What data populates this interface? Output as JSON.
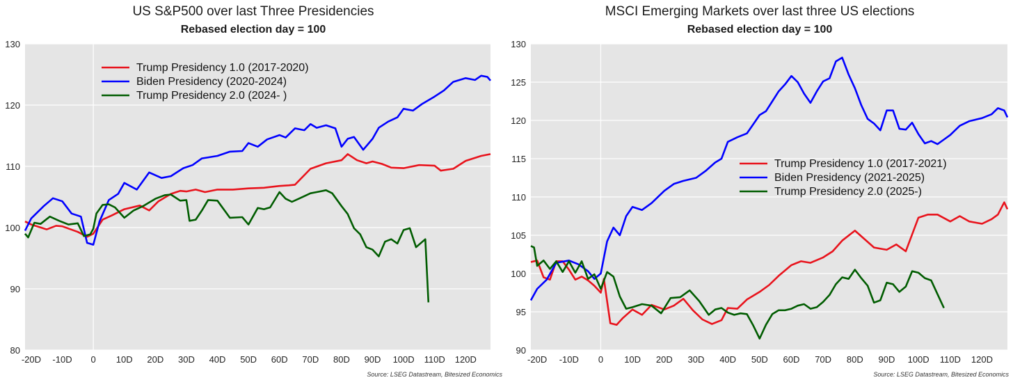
{
  "chart_data": [
    {
      "type": "line",
      "title": "US S&P500 over last Three Presidencies",
      "subtitle": "Rebased election day = 100",
      "xlabel": "",
      "ylabel": "",
      "xlim": [
        -22,
        128
      ],
      "ylim": [
        80,
        130
      ],
      "x_ticks": [
        -20,
        -10,
        0,
        10,
        20,
        30,
        40,
        50,
        60,
        70,
        80,
        90,
        100,
        110,
        120
      ],
      "x_tick_labels": [
        "-20D",
        "-10D",
        "0",
        "10D",
        "20D",
        "30D",
        "40D",
        "50D",
        "60D",
        "70D",
        "80D",
        "90D",
        "100D",
        "110D",
        "120D"
      ],
      "y_ticks": [
        80,
        90,
        100,
        110,
        120,
        130
      ],
      "y_tick_labels": [
        "80",
        "90",
        "100",
        "110",
        "120",
        "130"
      ],
      "grid": "horizontal",
      "legend": "top-center",
      "source": "Source: LSEG Datastream, Bitesized Economics",
      "series": [
        {
          "name": "Trump Presidency 1.0 (2017-2020)",
          "color": "#e8131c",
          "x": [
            -22,
            -20,
            -15,
            -12,
            -10,
            -5,
            -2,
            0,
            3,
            6,
            10,
            15,
            18,
            21,
            25,
            28,
            30,
            33,
            36,
            40,
            45,
            50,
            55,
            60,
            63,
            65,
            70,
            75,
            80,
            82,
            85,
            88,
            90,
            93,
            96,
            100,
            105,
            110,
            112,
            116,
            120,
            125,
            128
          ],
          "y": [
            101,
            100.5,
            99.7,
            100.3,
            100.2,
            99.3,
            98.5,
            99,
            101.3,
            102,
            103,
            103.6,
            102.8,
            104.3,
            105.5,
            106,
            105.9,
            106.2,
            105.8,
            106.2,
            106.2,
            106.4,
            106.5,
            106.8,
            106.9,
            107,
            109.6,
            110.5,
            111,
            112,
            111,
            110.5,
            110.8,
            110.4,
            109.8,
            109.7,
            110.2,
            110.1,
            109.3,
            109.6,
            110.9,
            111.7,
            112
          ]
        },
        {
          "name": "Biden Presidency (2020-2024)",
          "color": "#0000ff",
          "x": [
            -22,
            -20,
            -16,
            -13,
            -10,
            -7,
            -4,
            -2,
            0,
            2,
            5,
            8,
            10,
            14,
            18,
            22,
            25,
            29,
            32,
            35,
            40,
            44,
            48,
            50,
            53,
            56,
            60,
            62,
            65,
            68,
            70,
            72,
            75,
            78,
            80,
            82,
            84,
            87,
            90,
            92,
            95,
            98,
            100,
            103,
            106,
            110,
            113,
            116,
            120,
            123,
            125,
            127,
            128
          ],
          "y": [
            99.5,
            101.5,
            103.5,
            104.8,
            104.3,
            102.3,
            101.8,
            97.5,
            97.2,
            101,
            104.5,
            105.5,
            107.3,
            106.2,
            109,
            108.1,
            108.4,
            109.7,
            110.2,
            111.3,
            111.7,
            112.4,
            112.5,
            113.8,
            113.2,
            114.4,
            115.1,
            114.7,
            116.2,
            115.9,
            116.9,
            116.3,
            116.7,
            116.2,
            113.2,
            114.5,
            114.8,
            112.7,
            114.5,
            116.3,
            117.3,
            118,
            119.4,
            119.1,
            120.2,
            121.4,
            122.4,
            123.8,
            124.4,
            124.1,
            124.8,
            124.6,
            124
          ]
        },
        {
          "name": "Trump Presidency 2.0 (2024- )",
          "color": "#005c00",
          "x": [
            -22,
            -21,
            -19,
            -17,
            -14,
            -11,
            -8,
            -5,
            -3,
            -1,
            0,
            1,
            3,
            5,
            7,
            10,
            13,
            16,
            20,
            23,
            25,
            28,
            30,
            31,
            33,
            35,
            37,
            40,
            44,
            48,
            50,
            53,
            55,
            57,
            60,
            62,
            64,
            67,
            70,
            72,
            75,
            77,
            80,
            82,
            84,
            86,
            88,
            90,
            92,
            94,
            96,
            98,
            100,
            102,
            104,
            107,
            108
          ],
          "y": [
            99,
            98.4,
            100.8,
            100.6,
            101.8,
            101.1,
            100.5,
            100.7,
            98.6,
            98.9,
            99.8,
            102.3,
            103.7,
            103.8,
            103.3,
            101.6,
            102.8,
            103.5,
            104.7,
            105.3,
            105.4,
            104.4,
            104.5,
            101.1,
            101.3,
            102.8,
            104.5,
            104.4,
            101.6,
            101.7,
            100.5,
            103.2,
            103,
            103.3,
            105.8,
            104.7,
            104.2,
            104.9,
            105.6,
            105.8,
            106.1,
            105.6,
            103.5,
            102.2,
            99.9,
            98.9,
            96.8,
            96.4,
            95.3,
            97.7,
            98.1,
            97.4,
            99.6,
            99.9,
            96.8,
            98.1,
            87.8
          ]
        }
      ]
    },
    {
      "type": "line",
      "title": "MSCI Emerging Markets over last three US elections",
      "subtitle": "Rebased election day = 100",
      "xlabel": "",
      "ylabel": "",
      "xlim": [
        -22,
        128
      ],
      "ylim": [
        90,
        130
      ],
      "x_ticks": [
        -20,
        -10,
        0,
        10,
        20,
        30,
        40,
        50,
        60,
        70,
        80,
        90,
        100,
        110,
        120
      ],
      "x_tick_labels": [
        "-20D",
        "-10D",
        "0",
        "10D",
        "20D",
        "30D",
        "40D",
        "50D",
        "60D",
        "70D",
        "80D",
        "90D",
        "100D",
        "110D",
        "120D"
      ],
      "y_ticks": [
        90,
        95,
        100,
        105,
        110,
        115,
        120,
        125,
        130
      ],
      "y_tick_labels": [
        "90",
        "95",
        "100",
        "105",
        "110",
        "115",
        "120",
        "125",
        "130"
      ],
      "grid": "horizontal",
      "legend": "center-right",
      "source": "Source: LSEG Datastream, Bitesized Economics",
      "series": [
        {
          "name": "Trump Presidency 1.0 (2017-2021)",
          "color": "#e8131c",
          "x": [
            -22,
            -20,
            -18,
            -16,
            -14,
            -12,
            -10,
            -8,
            -6,
            -4,
            -2,
            0,
            1,
            3,
            5,
            7,
            10,
            13,
            16,
            20,
            23,
            26,
            29,
            32,
            35,
            38,
            40,
            43,
            46,
            50,
            53,
            56,
            60,
            63,
            66,
            70,
            73,
            76,
            80,
            83,
            86,
            90,
            93,
            96,
            100,
            103,
            106,
            110,
            113,
            116,
            120,
            123,
            125,
            127,
            128
          ],
          "y": [
            101.5,
            101.7,
            99.5,
            99.2,
            101.6,
            101.6,
            100.5,
            99.2,
            99.6,
            99.1,
            98.4,
            97.5,
            99.3,
            93.5,
            93.3,
            94.2,
            95.3,
            94.6,
            95.9,
            95.3,
            95.8,
            96.7,
            95.2,
            94,
            93.4,
            93.9,
            95.5,
            95.4,
            96.6,
            97.6,
            98.5,
            99.7,
            101.1,
            101.6,
            101.4,
            102.1,
            102.9,
            104.3,
            105.6,
            104.5,
            103.4,
            103.1,
            103.8,
            102.9,
            107.3,
            107.7,
            107.7,
            106.8,
            107.5,
            106.8,
            106.5,
            107.1,
            107.7,
            109.3,
            108.4
          ]
        },
        {
          "name": "Biden Presidency (2021-2025)",
          "color": "#0000ff",
          "x": [
            -22,
            -20,
            -17,
            -14,
            -10,
            -7,
            -4,
            -2,
            0,
            2,
            4,
            6,
            8,
            10,
            13,
            16,
            20,
            23,
            26,
            30,
            33,
            36,
            38,
            40,
            43,
            46,
            48,
            50,
            52,
            54,
            56,
            58,
            60,
            62,
            64,
            66,
            68,
            70,
            72,
            74,
            76,
            78,
            80,
            82,
            84,
            86,
            88,
            90,
            92,
            94,
            96,
            98,
            100,
            102,
            104,
            106,
            108,
            110,
            113,
            116,
            120,
            123,
            125,
            127,
            128
          ],
          "y": [
            96.5,
            98,
            99.2,
            101.4,
            101.7,
            101.2,
            100.3,
            99.3,
            100,
            104.2,
            106,
            105,
            107.5,
            108.7,
            108.3,
            109.2,
            110.8,
            111.7,
            112.1,
            112.5,
            113.4,
            114.5,
            115,
            117.2,
            117.8,
            118.3,
            119.5,
            120.7,
            121.2,
            122.5,
            123.8,
            124.7,
            125.8,
            125,
            123.5,
            122.3,
            123.8,
            125.1,
            125.5,
            127.7,
            128.2,
            126,
            124.2,
            122,
            120.2,
            119.6,
            118.7,
            121.3,
            121.3,
            118.9,
            118.8,
            119.7,
            118.2,
            117,
            117.3,
            116.9,
            117.5,
            118.1,
            119.3,
            119.9,
            120.3,
            120.8,
            121.6,
            121.3,
            120.4
          ]
        },
        {
          "name": "Trump Presidency 2.0 (2025-)",
          "color": "#005c00",
          "x": [
            -22,
            -21,
            -20,
            -18,
            -16,
            -14,
            -12,
            -10,
            -8,
            -6,
            -4,
            -2,
            0,
            2,
            4,
            6,
            8,
            10,
            13,
            16,
            19,
            22,
            25,
            28,
            31,
            34,
            36,
            38,
            40,
            42,
            44,
            46,
            48,
            50,
            52,
            54,
            56,
            58,
            60,
            62,
            64,
            66,
            68,
            70,
            72,
            74,
            76,
            78,
            80,
            82,
            84,
            86,
            88,
            90,
            92,
            94,
            96,
            98,
            100,
            102,
            104,
            106,
            108
          ],
          "y": [
            103.6,
            103.4,
            101,
            101.7,
            100.6,
            101.6,
            100.2,
            101.6,
            100.1,
            101.6,
            99.3,
            99.9,
            98,
            100.2,
            99.6,
            97,
            95.4,
            95.6,
            96,
            95.8,
            94.8,
            96.8,
            96.9,
            97.8,
            96.4,
            94.6,
            95.3,
            95.5,
            94.9,
            94.6,
            94.8,
            94.7,
            93.2,
            91.5,
            93.3,
            94.7,
            95.2,
            95.2,
            95.4,
            95.8,
            96,
            95.4,
            95.6,
            96.3,
            97.2,
            98.6,
            99.5,
            99.3,
            100.5,
            99.4,
            98.4,
            96.2,
            96.5,
            98.8,
            98.6,
            97.6,
            98.3,
            100.3,
            100.1,
            99.4,
            99.1,
            97.3,
            95.5
          ]
        }
      ]
    }
  ]
}
